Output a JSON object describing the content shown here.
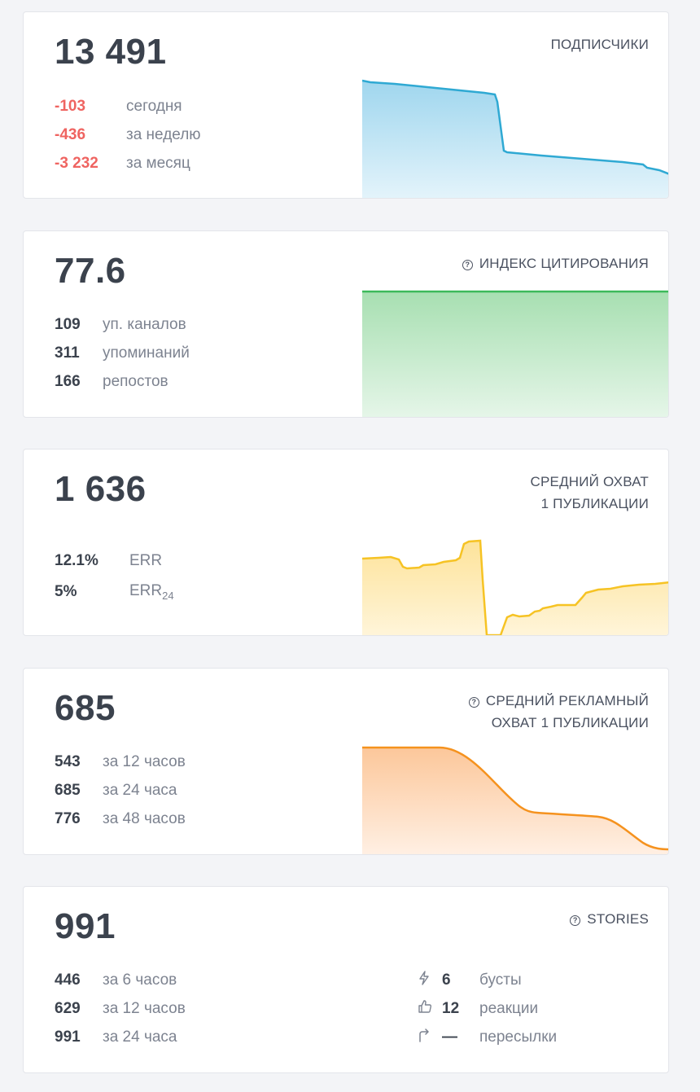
{
  "subscribers": {
    "value": "13 491",
    "title": "ПОДПИСЧИКИ",
    "rows": [
      {
        "value": "-103",
        "label": "сегодня"
      },
      {
        "value": "-436",
        "label": "за неделю"
      },
      {
        "value": "-3 232",
        "label": "за месяц"
      }
    ],
    "color": "#2fa9d3"
  },
  "citation": {
    "value": "77.6",
    "title": "ИНДЕКС ЦИТИРОВАНИЯ",
    "rows": [
      {
        "value": "109",
        "label": "уп. каналов"
      },
      {
        "value": "311",
        "label": "упоминаний"
      },
      {
        "value": "166",
        "label": "репостов"
      }
    ],
    "color": "#3cb95a"
  },
  "reach": {
    "value": "1 636",
    "title_line1": "СРЕДНИЙ ОХВАТ",
    "title_line2": "1 ПУБЛИКАЦИИ",
    "rows": [
      {
        "value": "12.1%",
        "label": "ERR"
      },
      {
        "value": "5%",
        "label": "ERR",
        "sub": "24"
      }
    ],
    "color": "#f6c324"
  },
  "ad_reach": {
    "value": "685",
    "title_line1": "СРЕДНИЙ РЕКЛАМНЫЙ",
    "title_line2": "ОХВАТ 1 ПУБЛИКАЦИИ",
    "rows": [
      {
        "value": "543",
        "label": "за 12 часов"
      },
      {
        "value": "685",
        "label": "за 24 часа"
      },
      {
        "value": "776",
        "label": "за 48 часов"
      }
    ],
    "color": "#f5921e"
  },
  "stories": {
    "value": "991",
    "title": "STORIES",
    "rows": [
      {
        "value": "446",
        "label": "за 6 часов"
      },
      {
        "value": "629",
        "label": "за 12 часов"
      },
      {
        "value": "991",
        "label": "за 24 часа"
      }
    ],
    "extras": [
      {
        "icon": "lightning-icon",
        "value": "6",
        "label": "бусты"
      },
      {
        "icon": "thumbs-up-icon",
        "value": "12",
        "label": "реакции"
      },
      {
        "icon": "forward-arrow-icon",
        "value": "—",
        "label": "пересылки"
      }
    ]
  }
}
